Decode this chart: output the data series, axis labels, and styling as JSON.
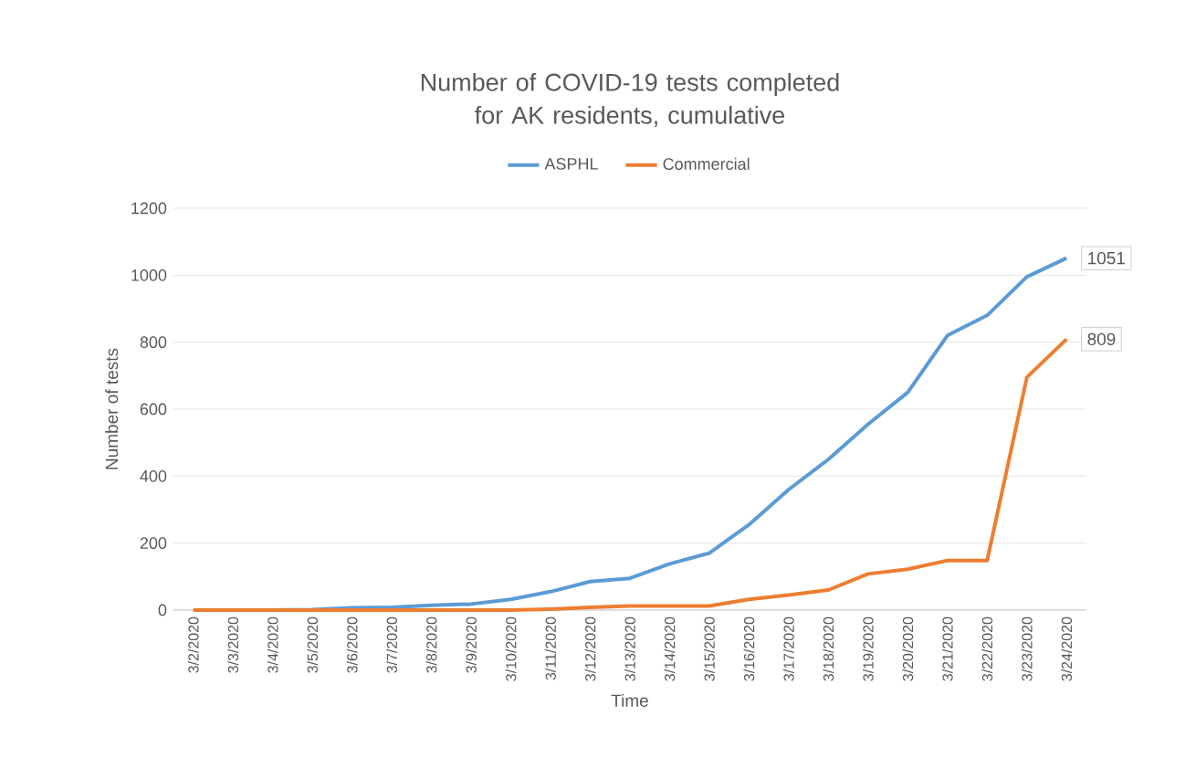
{
  "chart_data": {
    "type": "line",
    "title": "Number of COVID-19 tests completed for AK residents, cumulative",
    "xlabel": "Time",
    "ylabel": "Number of tests",
    "categories": [
      "3/2/2020",
      "3/3/2020",
      "3/4/2020",
      "3/5/2020",
      "3/6/2020",
      "3/7/2020",
      "3/8/2020",
      "3/9/2020",
      "3/10/2020",
      "3/11/2020",
      "3/12/2020",
      "3/13/2020",
      "3/14/2020",
      "3/15/2020",
      "3/16/2020",
      "3/17/2020",
      "3/18/2020",
      "3/19/2020",
      "3/20/2020",
      "3/21/2020",
      "3/22/2020",
      "3/23/2020",
      "3/24/2020"
    ],
    "series": [
      {
        "name": "ASPHL",
        "color": "#5b9bd5",
        "values": [
          null,
          null,
          0,
          1,
          7,
          8,
          14,
          18,
          32,
          55,
          85,
          95,
          138,
          170,
          255,
          360,
          450,
          555,
          650,
          820,
          880,
          995,
          1051
        ],
        "value_labels": [
          null,
          null,
          null,
          null,
          null,
          null,
          null,
          null,
          null,
          null,
          null,
          null,
          null,
          null,
          null,
          null,
          null,
          null,
          null,
          null,
          null,
          null,
          "1051"
        ]
      },
      {
        "name": "Commercial",
        "color": "#ed7d31",
        "values": [
          0,
          0,
          0,
          0,
          0,
          0,
          0,
          0,
          0,
          3,
          8,
          12,
          12,
          12,
          32,
          45,
          60,
          108,
          122,
          148,
          148,
          695,
          809
        ],
        "value_labels": [
          null,
          null,
          null,
          null,
          null,
          null,
          null,
          null,
          null,
          null,
          null,
          null,
          null,
          null,
          null,
          null,
          null,
          null,
          null,
          null,
          null,
          null,
          "809"
        ]
      }
    ],
    "ylim": [
      0,
      1200
    ],
    "yticks": [
      0,
      200,
      400,
      600,
      800,
      1000,
      1200
    ],
    "grid": "y",
    "legend": "top",
    "marker": "none",
    "line_style": "solid"
  }
}
